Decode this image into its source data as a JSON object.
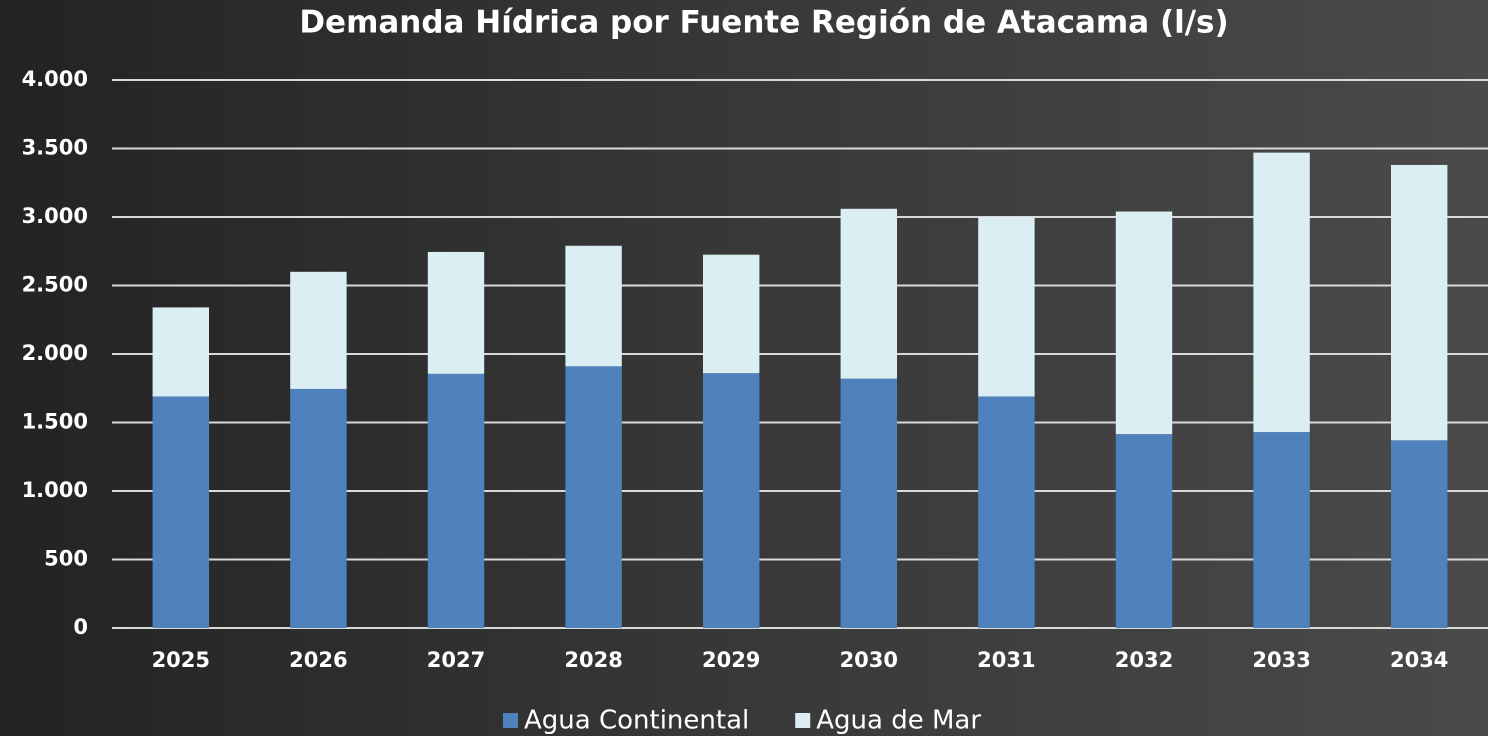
{
  "chart_data": {
    "type": "bar",
    "stacked": true,
    "title": "Demanda Hídrica por Fuente Región de Atacama (l/s)",
    "categories": [
      "2025",
      "2026",
      "2027",
      "2028",
      "2029",
      "2030",
      "2031",
      "2032",
      "2033",
      "2034"
    ],
    "series": [
      {
        "name": "Agua Continental",
        "color": "#4f81bd",
        "values": [
          1690,
          1745,
          1855,
          1910,
          1860,
          1820,
          1690,
          1415,
          1430,
          1370
        ]
      },
      {
        "name": "Agua de Mar",
        "color": "#daeef3",
        "values": [
          650,
          855,
          890,
          880,
          865,
          1240,
          1310,
          1625,
          2040,
          2010
        ]
      }
    ],
    "ylim": [
      0,
      4000
    ],
    "yticks": [
      0,
      500,
      {
        "value": 1000,
        "label": "1.000"
      },
      {
        "value": 1500,
        "label": "1.500"
      },
      {
        "value": 2000,
        "label": "2.000"
      },
      {
        "value": 2500,
        "label": "2.500"
      },
      {
        "value": 3000,
        "label": "3.000"
      },
      {
        "value": 3500,
        "label": "3.500"
      },
      {
        "value": 4000,
        "label": "4.000"
      }
    ],
    "grid": true,
    "legend": "bottom"
  }
}
